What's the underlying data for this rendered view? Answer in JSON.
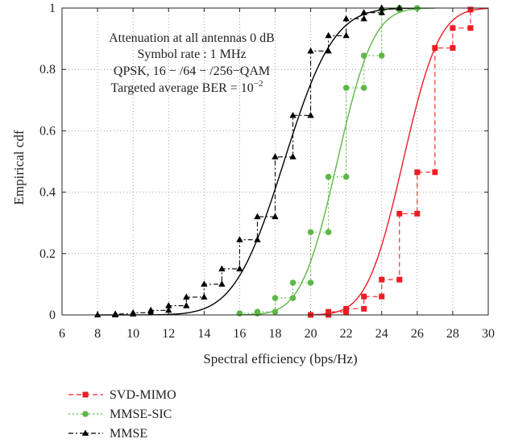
{
  "chart_data": {
    "type": "line",
    "xlabel": "Spectral efficiency (bps/Hz)",
    "ylabel": "Empirical cdf",
    "xlim": [
      6,
      30
    ],
    "ylim": [
      0,
      1
    ],
    "xticks": [
      6,
      8,
      10,
      12,
      14,
      16,
      18,
      20,
      22,
      24,
      26,
      28,
      30
    ],
    "yticks": [
      0,
      0.2,
      0.4,
      0.6,
      0.8,
      1
    ],
    "xtick_labels": [
      "6",
      "8",
      "10",
      "12",
      "14",
      "16",
      "18",
      "20",
      "22",
      "24",
      "26",
      "28",
      "30"
    ],
    "ytick_labels": [
      "0",
      "0.2",
      "0.4",
      "0.6",
      "0.8",
      "1"
    ],
    "grid": true,
    "legend_position": "below",
    "annotation": {
      "line1": "Attenuation at all antennas 0 dB",
      "line2": "Symbol rate : 1 MHz",
      "line3": "QPSK, 16 − /64 − /256−QAM",
      "line4_prefix": "Targeted average BER = 10",
      "line4_exponent": "−2"
    },
    "series": [
      {
        "name": "SVD-MIMO",
        "color": "#ee1c25",
        "marker": "square",
        "line_style": "dashed",
        "fit": {
          "mu": 25.2,
          "sigma": 1.6
        },
        "x": [
          20,
          21,
          22,
          23,
          24,
          25,
          26,
          27,
          28,
          29
        ],
        "y": [
          0.0,
          0.01,
          0.02,
          0.06,
          0.115,
          0.33,
          0.465,
          0.87,
          0.935,
          0.995
        ]
      },
      {
        "name": "MMSE-SIC",
        "color": "#5cb947",
        "marker": "circle",
        "line_style": "dotted",
        "fit": {
          "mu": 21.5,
          "sigma": 1.6
        },
        "x": [
          16,
          17,
          18,
          19,
          20,
          21,
          22,
          23,
          24,
          25,
          26
        ],
        "y": [
          0.005,
          0.01,
          0.055,
          0.105,
          0.27,
          0.45,
          0.74,
          0.845,
          0.995,
          1.0,
          1.0
        ]
      },
      {
        "name": "MMSE",
        "color": "#000000",
        "marker": "triangle",
        "line_style": "dash-dot",
        "fit": {
          "mu": 18.5,
          "sigma": 2.2
        },
        "x": [
          8,
          9,
          10,
          11,
          12,
          13,
          14,
          15,
          16,
          17,
          18,
          19,
          20,
          21,
          22,
          23,
          24,
          25
        ],
        "y": [
          0.0,
          0.003,
          0.007,
          0.015,
          0.03,
          0.058,
          0.1,
          0.15,
          0.245,
          0.32,
          0.515,
          0.65,
          0.86,
          0.91,
          0.965,
          0.985,
          1.0,
          1.0
        ]
      }
    ]
  }
}
